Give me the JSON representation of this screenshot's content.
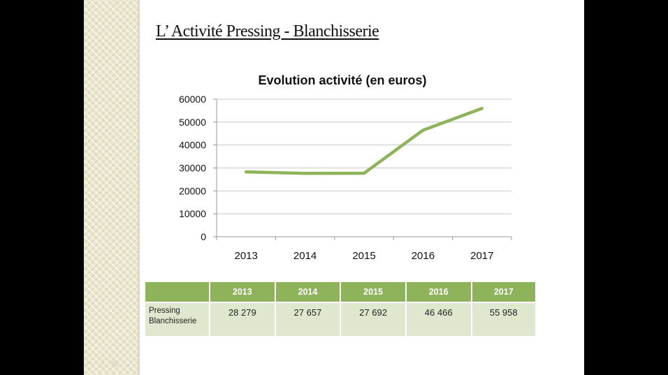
{
  "slide": {
    "title": "L’ Activité Pressing - Blanchisserie"
  },
  "chart_data": {
    "type": "line",
    "title": "Evolution activité (en euros)",
    "categories": [
      "2013",
      "2014",
      "2015",
      "2016",
      "2017"
    ],
    "series": [
      {
        "values": [
          28279,
          27657,
          27692,
          46466,
          55958
        ],
        "color": "#8fb35a"
      }
    ],
    "ylim": [
      0,
      60000
    ],
    "yticks": [
      0,
      10000,
      20000,
      30000,
      40000,
      50000,
      60000
    ],
    "grid": true,
    "legend": "none"
  },
  "table": {
    "header": [
      "",
      "2013",
      "2014",
      "2015",
      "2016",
      "2017"
    ],
    "rows": [
      {
        "label_line1": "Pressing",
        "label_line2": "Blanchisserie",
        "values": [
          "28 279",
          "27 657",
          "27 692",
          "46 466",
          "55 958"
        ]
      }
    ],
    "header_color": "#8fb35a",
    "row_color": "#dfe8cf"
  },
  "nav_controls": [
    "back-icon",
    "pen-icon",
    "slides-icon",
    "menu-icon"
  ]
}
